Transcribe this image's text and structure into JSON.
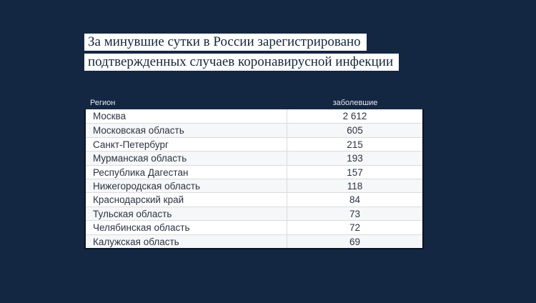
{
  "colors": {
    "background": "#132742",
    "title_text": "#13273f",
    "title_highlight": "#ffffff",
    "header_text": "#e5e8ee",
    "row_text": "#2b3344",
    "row_alt": "#f6f7f8",
    "divider": "#d9dbde",
    "table_border": "#0a1422"
  },
  "title": {
    "line1": "За минувшие сутки в России зарегистрировано",
    "line2": "подтвержденных случаев коронавирусной инфекции"
  },
  "table": {
    "headers": {
      "region": "Регион",
      "cases": "заболевшие"
    },
    "rows": [
      {
        "region": "Москва",
        "cases": "2 612"
      },
      {
        "region": "Московская область",
        "cases": "605"
      },
      {
        "region": "Санкт-Петербург",
        "cases": "215"
      },
      {
        "region": "Мурманская область",
        "cases": "193"
      },
      {
        "region": "Республика Дагестан",
        "cases": "157"
      },
      {
        "region": "Нижегородская область",
        "cases": "118"
      },
      {
        "region": "Краснодарский край",
        "cases": "84"
      },
      {
        "region": "Тульская область",
        "cases": "73"
      },
      {
        "region": "Челябинская область",
        "cases": "72"
      },
      {
        "region": "Калужская область",
        "cases": "69"
      }
    ]
  },
  "chart_data": {
    "type": "table",
    "title": "За минувшие сутки в России зарегистрировано подтвержденных случаев коронавирусной инфекции",
    "columns": [
      "Регион",
      "заболевшие"
    ],
    "rows": [
      [
        "Москва",
        2612
      ],
      [
        "Московская область",
        605
      ],
      [
        "Санкт-Петербург",
        215
      ],
      [
        "Мурманская область",
        193
      ],
      [
        "Республика Дагестан",
        157
      ],
      [
        "Нижегородская область",
        118
      ],
      [
        "Краснодарский край",
        84
      ],
      [
        "Тульская область",
        73
      ],
      [
        "Челябинская область",
        72
      ],
      [
        "Калужская область",
        69
      ]
    ]
  }
}
